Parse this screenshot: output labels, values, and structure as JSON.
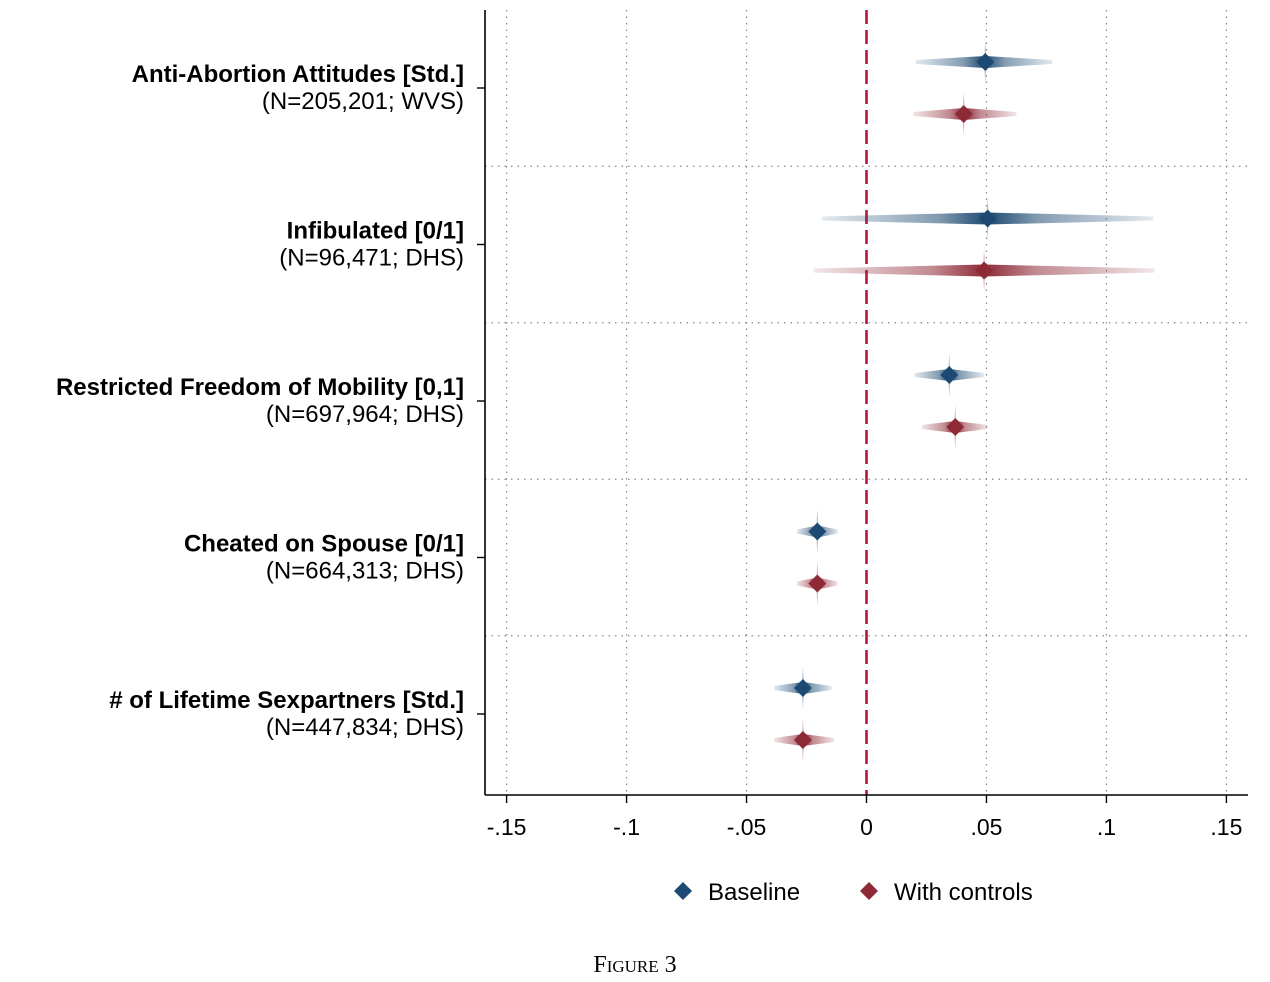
{
  "figure_label": "Figure 3",
  "chart_data": {
    "type": "scatter",
    "subtype": "coefficient-plot",
    "xlim": [
      -0.159,
      0.159
    ],
    "xticks": [
      -0.15,
      -0.1,
      -0.05,
      0,
      0.05,
      0.1,
      0.15
    ],
    "xtick_labels": [
      "-.15",
      "-.1",
      "-.05",
      "0",
      ".05",
      ".1",
      ".15"
    ],
    "reference_line_x": 0,
    "reference_line_color": "#b5173a",
    "grid": true,
    "legend_position": "bottom",
    "categories": [
      {
        "title": "Anti-Abortion Attitudes [Std.]",
        "subtitle": "(N=205,201; WVS)"
      },
      {
        "title": "Infibulated [0/1]",
        "subtitle": "(N=96,471; DHS)"
      },
      {
        "title": "Restricted Freedom of Mobility [0,1]",
        "subtitle": "(N=697,964; DHS)"
      },
      {
        "title": "Cheated on Spouse [0/1]",
        "subtitle": "(N=664,313; DHS)"
      },
      {
        "title": "# of Lifetime Sexpartners [Std.]",
        "subtitle": "(N=447,834; DHS)"
      }
    ],
    "series": [
      {
        "name": "Baseline",
        "color": "#1d4a72",
        "points": [
          {
            "estimate": 0.0495,
            "ci_low": 0.0205,
            "ci_high": 0.0775
          },
          {
            "estimate": 0.0505,
            "ci_low": -0.0185,
            "ci_high": 0.1195
          },
          {
            "estimate": 0.0345,
            "ci_low": 0.02,
            "ci_high": 0.049
          },
          {
            "estimate": -0.0205,
            "ci_low": -0.029,
            "ci_high": -0.012
          },
          {
            "estimate": -0.0265,
            "ci_low": -0.0385,
            "ci_high": -0.0145
          }
        ]
      },
      {
        "name": "With controls",
        "color": "#8e2a36",
        "points": [
          {
            "estimate": 0.0405,
            "ci_low": 0.0195,
            "ci_high": 0.0625
          },
          {
            "estimate": 0.049,
            "ci_low": -0.022,
            "ci_high": 0.12
          },
          {
            "estimate": 0.037,
            "ci_low": 0.023,
            "ci_high": 0.0505
          },
          {
            "estimate": -0.0205,
            "ci_low": -0.029,
            "ci_high": -0.012
          },
          {
            "estimate": -0.0265,
            "ci_low": -0.0385,
            "ci_high": -0.0135
          }
        ]
      }
    ]
  }
}
